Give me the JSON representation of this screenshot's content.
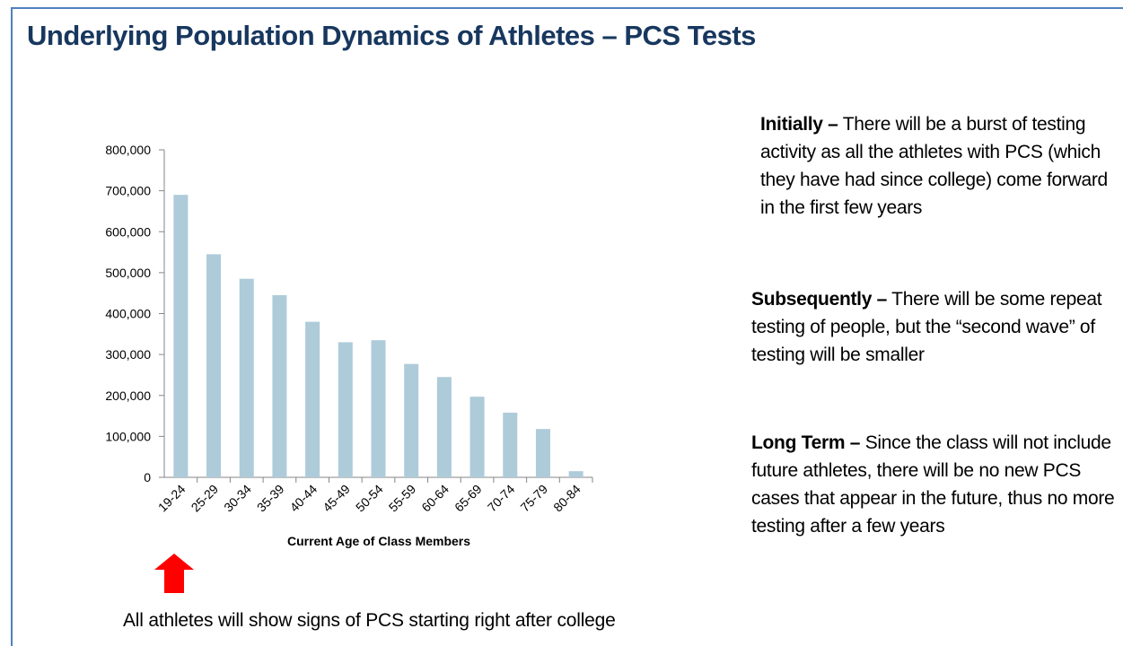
{
  "slide": {
    "title": "Underlying Population Dynamics of Athletes – PCS Tests",
    "notes": [
      {
        "heading": "Initially –",
        "body": "There will be a burst of testing activity as all the athletes with PCS (which they have had since college) come forward in the first few years"
      },
      {
        "heading": "Subsequently –",
        "body": "There will be some repeat testing of people, but the “second wave” of testing will be smaller"
      },
      {
        "heading": "Long Term –",
        "body": "Since the class will not include future athletes, there will be no new PCS cases that appear in the future, thus no more testing after a few years"
      }
    ],
    "caption": "All athletes will show signs of PCS starting right after college"
  },
  "chart_data": {
    "type": "bar",
    "x_label": "Current Age of Class Members",
    "categories": [
      "19-24",
      "25-29",
      "30-34",
      "35-39",
      "40-44",
      "45-49",
      "50-54",
      "55-59",
      "60-64",
      "65-69",
      "70-74",
      "75-79",
      "80-84"
    ],
    "values": [
      690000,
      545000,
      485000,
      445000,
      380000,
      330000,
      335000,
      277000,
      245000,
      197000,
      158000,
      118000,
      15000
    ],
    "color": "#aecbd9",
    "ylim": [
      0,
      800000
    ],
    "yticks": [
      0,
      {
        "value": 100000,
        "label": "100,000"
      },
      {
        "value": 200000,
        "label": "200,000"
      },
      {
        "value": 300000,
        "label": "300,000"
      },
      {
        "value": 400000,
        "label": "400,000"
      },
      {
        "value": 500000,
        "label": "500,000"
      },
      {
        "value": 600000,
        "label": "600,000"
      },
      {
        "value": 700000,
        "label": "700,000"
      },
      {
        "value": 800000,
        "label": "800,000"
      }
    ],
    "grid": false
  }
}
